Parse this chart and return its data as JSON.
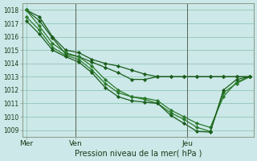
{
  "xlabel": "Pression niveau de la mer( hPa )",
  "bg_color": "#cce8e8",
  "grid_color": "#99ccbb",
  "ylim": [
    1008.5,
    1018.5
  ],
  "yticks": [
    1009,
    1010,
    1011,
    1012,
    1013,
    1014,
    1015,
    1016,
    1017,
    1018
  ],
  "day_positions": [
    0.0,
    0.22,
    0.72
  ],
  "day_labels": [
    "Mer",
    "Ven",
    "Jeu"
  ],
  "num_points": 18,
  "series": [
    {
      "color": "#1a5c1a",
      "lw": 0.9,
      "x": [
        0,
        1,
        2,
        3,
        4,
        5,
        6,
        7,
        8,
        9,
        10,
        11,
        12,
        13,
        14,
        15,
        16,
        17
      ],
      "y": [
        1018.0,
        1017.5,
        1016.0,
        1015.0,
        1014.8,
        1014.3,
        1014.0,
        1013.8,
        1013.5,
        1013.2,
        1013.0,
        1013.0,
        1013.0,
        1013.0,
        1013.0,
        1013.0,
        1013.0,
        1013.0
      ]
    },
    {
      "color": "#1a5c1a",
      "lw": 0.9,
      "x": [
        0,
        1,
        2,
        3,
        4,
        5,
        6,
        7,
        8,
        9,
        10,
        11,
        12,
        13,
        14,
        15,
        16,
        17
      ],
      "y": [
        1018.0,
        1017.2,
        1015.9,
        1014.7,
        1014.5,
        1014.1,
        1013.7,
        1013.3,
        1012.8,
        1012.8,
        1013.0,
        1013.0,
        1013.0,
        1013.0,
        1013.0,
        1013.0,
        1013.0,
        1013.0
      ]
    },
    {
      "color": "#2a7a2a",
      "lw": 0.9,
      "x": [
        0,
        1,
        2,
        3,
        4,
        5,
        6,
        7,
        8,
        9,
        10,
        11,
        12,
        13,
        14,
        15,
        16,
        17
      ],
      "y": [
        1017.5,
        1016.5,
        1015.2,
        1014.6,
        1014.3,
        1013.5,
        1012.5,
        1011.8,
        1011.5,
        1011.4,
        1011.2,
        1010.5,
        1010.0,
        1009.5,
        1009.2,
        1011.5,
        1012.6,
        1013.0
      ]
    },
    {
      "color": "#2a7a2a",
      "lw": 0.9,
      "x": [
        0,
        1,
        2,
        3,
        4,
        5,
        6,
        7,
        8,
        9,
        10,
        11,
        12,
        13,
        14,
        15,
        16,
        17
      ],
      "y": [
        1018.0,
        1016.8,
        1015.5,
        1014.8,
        1014.5,
        1013.8,
        1012.8,
        1012.0,
        1011.5,
        1011.3,
        1011.0,
        1010.3,
        1009.8,
        1009.2,
        1008.9,
        1011.8,
        1012.5,
        1013.0
      ]
    },
    {
      "color": "#1a5c1a",
      "lw": 0.9,
      "x": [
        0,
        1,
        2,
        3,
        4,
        5,
        6,
        7,
        8,
        9,
        10,
        11,
        12,
        13,
        14,
        15,
        16,
        17
      ],
      "y": [
        1017.2,
        1016.2,
        1015.0,
        1014.5,
        1014.1,
        1013.3,
        1012.2,
        1011.5,
        1011.2,
        1011.1,
        1011.0,
        1010.1,
        1009.5,
        1008.9,
        1008.85,
        1012.0,
        1012.8,
        1013.0
      ]
    }
  ],
  "vline_positions": [
    0.22,
    0.72
  ],
  "vline_color": "#556655",
  "spine_color": "#889988",
  "tick_color": "#1a3a1a",
  "xlabel_fontsize": 7,
  "ytick_fontsize": 5.5,
  "xtick_fontsize": 6.5
}
